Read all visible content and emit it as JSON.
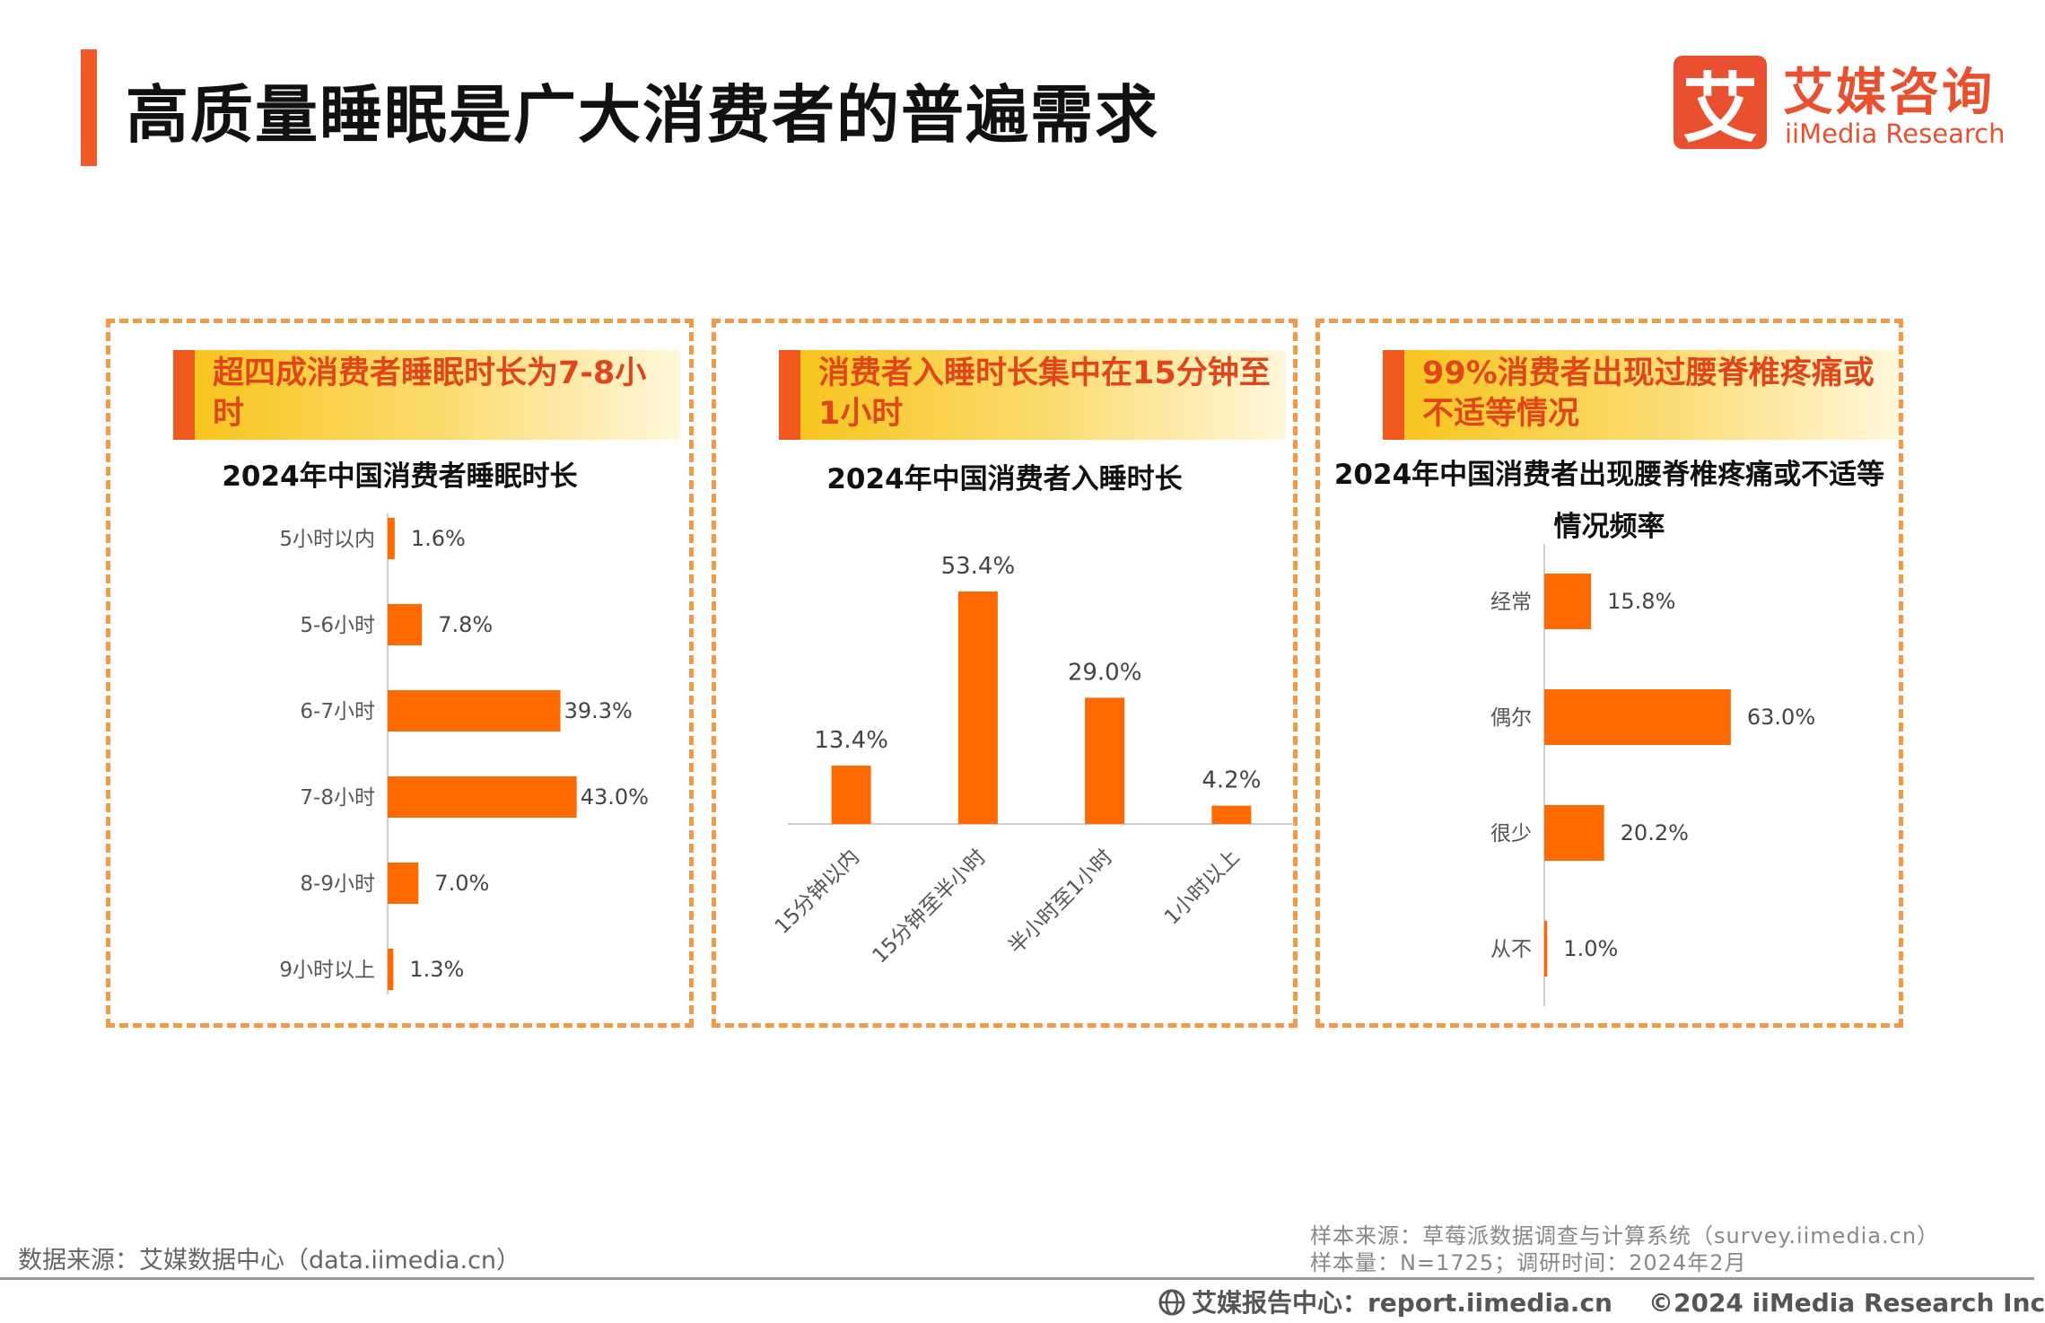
{
  "page": {
    "title": "高质量睡眠是广大消费者的普遍需求"
  },
  "logo": {
    "mark": "艾",
    "name_cn": "艾媒咨询",
    "name_en": "iiMedia Research"
  },
  "panels": [
    {
      "headline": "超四成消费者睡眠时长为7-8小时"
    },
    {
      "headline": "消费者入睡时长集中在15分钟至1小时"
    },
    {
      "headline": "99%消费者出现过腰脊椎疼痛或不适等情况"
    }
  ],
  "colors": {
    "bar": "#ff6a00",
    "accent": "#f05a28",
    "dash": "#f29a45"
  },
  "chart_data": [
    {
      "type": "bar",
      "orientation": "horizontal",
      "title": "2024年中国消费者睡眠时长",
      "categories": [
        "5小时以内",
        "5-6小时",
        "6-7小时",
        "7-8小时",
        "8-9小时",
        "9小时以上"
      ],
      "values": [
        1.6,
        7.8,
        39.3,
        43.0,
        7.0,
        1.3
      ],
      "labels": [
        "1.6%",
        "7.8%",
        "39.3%",
        "43.0%",
        "7.0%",
        "1.3%"
      ],
      "unit": "%"
    },
    {
      "type": "bar",
      "orientation": "vertical",
      "title": "2024年中国消费者入睡时长",
      "categories": [
        "15分钟以内",
        "15分钟至半小时",
        "半小时至1小时",
        "1小时以上"
      ],
      "values": [
        13.4,
        53.4,
        29.0,
        4.2
      ],
      "labels": [
        "13.4%",
        "53.4%",
        "29.0%",
        "4.2%"
      ],
      "unit": "%"
    },
    {
      "type": "bar",
      "orientation": "horizontal",
      "title": "2024年中国消费者出现腰脊椎疼痛或不适等情况频率",
      "title_line1": "2024年中国消费者出现腰脊椎疼痛或不适等",
      "title_line2": "情况频率",
      "categories": [
        "经常",
        "偶尔",
        "很少",
        "从不"
      ],
      "values": [
        15.8,
        63.0,
        20.2,
        1.0
      ],
      "labels": [
        "15.8%",
        "63.0%",
        "20.2%",
        "1.0%"
      ],
      "unit": "%"
    }
  ],
  "footer": {
    "source": "数据来源：艾媒数据中心（data.iimedia.cn）",
    "sample_source": "样本来源：草莓派数据调查与计算系统（survey.iimedia.cn）",
    "sample_size": "样本量：N=1725；调研时间：2024年2月",
    "report_center": "艾媒报告中心：report.iimedia.cn",
    "copyright": "©2024  iiMedia Research  Inc"
  }
}
